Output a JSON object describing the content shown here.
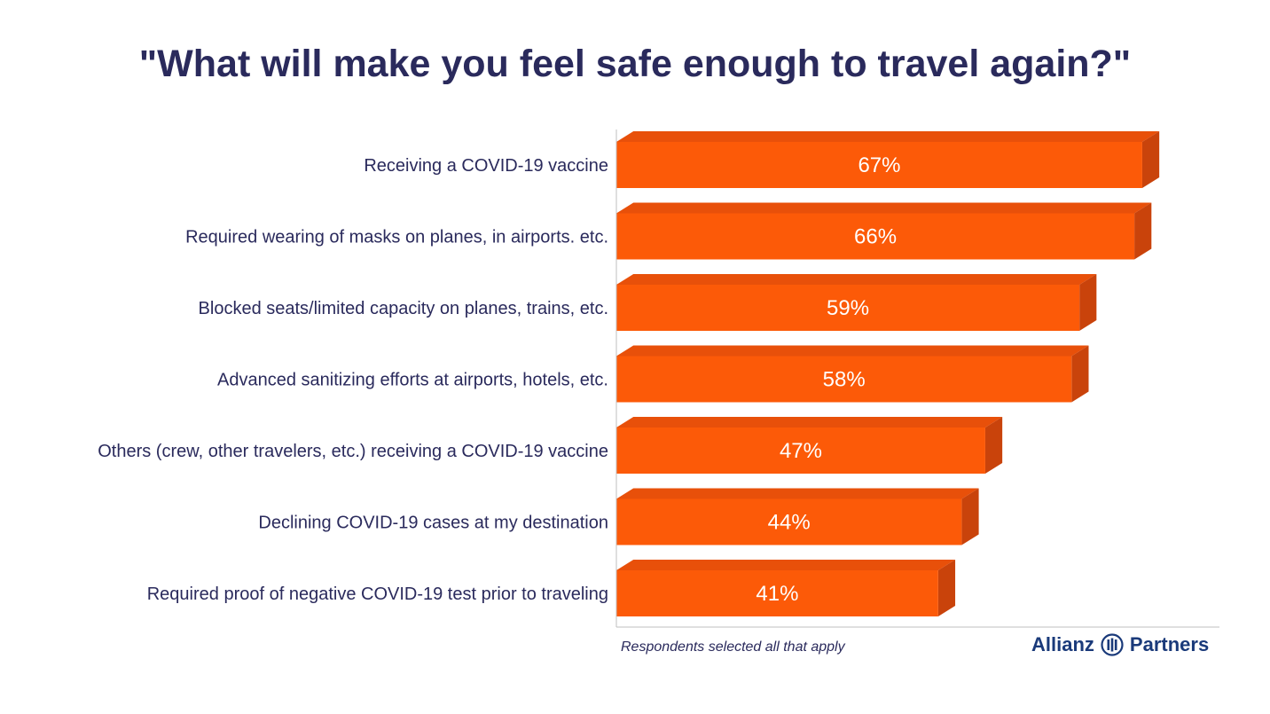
{
  "title": "\"What will make you feel safe enough to travel again?\"",
  "footnote": "Respondents selected all that apply",
  "logo": {
    "left_word": "Allianz",
    "right_word": "Partners",
    "icon": "allianz-eagle-icon"
  },
  "colors": {
    "bar_front": "#fc5a08",
    "bar_top": "#e8500a",
    "bar_side": "#c9430b",
    "title": "#2a2a5c",
    "axis": "#bfbfbf"
  },
  "chart_data": {
    "type": "bar",
    "orientation": "horizontal",
    "title": "\"What will make you feel safe enough to travel again?\"",
    "categories": [
      "Receiving a COVID-19 vaccine",
      "Required wearing of masks on planes, in airports. etc.",
      "Blocked seats/limited capacity on planes, trains, etc.",
      "Advanced sanitizing efforts at airports, hotels, etc.",
      "Others (crew, other travelers, etc.) receiving a COVID-19 vaccine",
      "Declining COVID-19 cases at my destination",
      "Required proof of negative COVID-19 test prior to traveling"
    ],
    "values": [
      67,
      66,
      59,
      58,
      47,
      44,
      41
    ],
    "value_labels": [
      "67%",
      "66%",
      "59%",
      "58%",
      "47%",
      "44%",
      "41%"
    ],
    "xlim": [
      0,
      70
    ],
    "grid": false,
    "legend": "none"
  }
}
